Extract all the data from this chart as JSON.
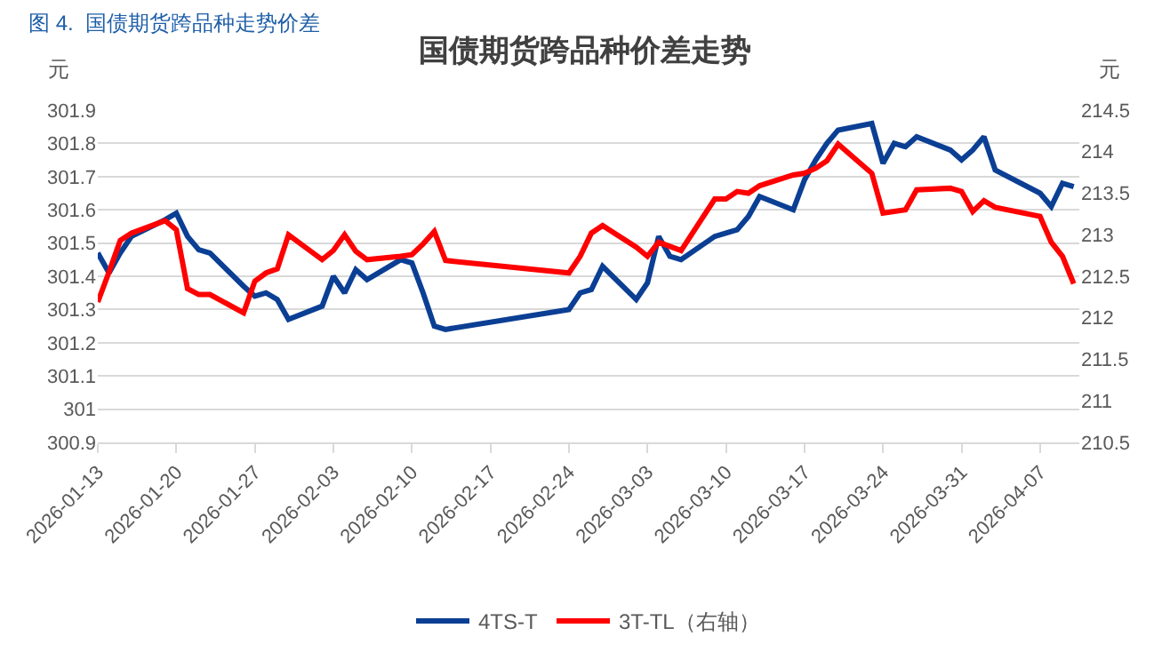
{
  "chart_data": {
    "type": "line",
    "title": "国债期货跨品种价差走势",
    "annotations": [
      "图 4.  国债期货跨品种走势价差"
    ],
    "ylabel": "元",
    "y2label": "元",
    "x": [
      "2026-01-13",
      "2026-01-14",
      "2026-01-15",
      "2026-01-16",
      "2026-01-19",
      "2026-01-20",
      "2026-01-21",
      "2026-01-22",
      "2026-01-23",
      "2026-01-26",
      "2026-01-27",
      "2026-01-28",
      "2026-01-29",
      "2026-01-30",
      "2026-02-02",
      "2026-02-03",
      "2026-02-04",
      "2026-02-05",
      "2026-02-06",
      "2026-02-09",
      "2026-02-10",
      "2026-02-11",
      "2026-02-12",
      "2026-02-13",
      "2026-02-24",
      "2026-02-25",
      "2026-02-26",
      "2026-02-27",
      "2026-03-02",
      "2026-03-03",
      "2026-03-04",
      "2026-03-05",
      "2026-03-06",
      "2026-03-09",
      "2026-03-10",
      "2026-03-11",
      "2026-03-12",
      "2026-03-13",
      "2026-03-16",
      "2026-03-17",
      "2026-03-18",
      "2026-03-19",
      "2026-03-20",
      "2026-03-23",
      "2026-03-24",
      "2026-03-25",
      "2026-03-26",
      "2026-03-27",
      "2026-03-30",
      "2026-03-31",
      "2026-04-01",
      "2026-04-02",
      "2026-04-03",
      "2026-04-07",
      "2026-04-08",
      "2026-04-09",
      "2026-04-10"
    ],
    "series": [
      {
        "name": "4TS-T",
        "color": "#0b3f94",
        "values": [
          301.47,
          301.41,
          301.47,
          301.52,
          301.57,
          301.59,
          301.52,
          301.48,
          301.47,
          301.37,
          301.34,
          301.35,
          301.33,
          301.27,
          301.31,
          301.4,
          301.35,
          301.42,
          301.39,
          301.45,
          301.44,
          301.35,
          301.25,
          301.24,
          301.3,
          301.35,
          301.36,
          301.43,
          301.33,
          301.38,
          301.52,
          301.46,
          301.45,
          301.52,
          301.53,
          301.54,
          301.58,
          301.64,
          301.6,
          301.69,
          301.75,
          301.8,
          301.84,
          301.86,
          301.74,
          301.8,
          301.79,
          301.82,
          301.78,
          301.75,
          301.78,
          301.82,
          301.72,
          301.65,
          301.61,
          301.68,
          301.67
        ]
      },
      {
        "name": "3T-TL（右轴）",
        "color": "#ff0000",
        "axis": "y2",
        "values": [
          212.19,
          212.55,
          212.93,
          213.02,
          213.17,
          213.06,
          212.35,
          212.28,
          212.28,
          212.06,
          212.44,
          212.54,
          212.59,
          213.0,
          212.7,
          212.81,
          213.0,
          212.8,
          212.7,
          212.74,
          212.76,
          212.89,
          213.04,
          212.69,
          212.54,
          212.74,
          213.02,
          213.11,
          212.85,
          212.74,
          212.91,
          212.86,
          212.81,
          213.43,
          213.43,
          213.52,
          213.5,
          213.59,
          213.72,
          213.74,
          213.8,
          213.89,
          214.09,
          213.74,
          213.26,
          213.28,
          213.3,
          213.54,
          213.56,
          213.52,
          213.28,
          213.41,
          213.33,
          213.22,
          212.91,
          212.74,
          212.41
        ]
      }
    ],
    "xlim": [
      "2026-01-13",
      "2026-04-10T12:00"
    ],
    "xticks": [
      {
        "value": "2026-01-13",
        "label": "2026-01-13"
      },
      {
        "value": "2026-01-20",
        "label": "2026-01-20"
      },
      {
        "value": "2026-01-27",
        "label": "2026-01-27"
      },
      {
        "value": "2026-02-03",
        "label": "2026-02-03"
      },
      {
        "value": "2026-02-10",
        "label": "2026-02-10"
      },
      {
        "value": "2026-02-17",
        "label": "2026-02-17"
      },
      {
        "value": "2026-02-24",
        "label": "2026-02-24"
      },
      {
        "value": "2026-03-03",
        "label": "2026-03-03"
      },
      {
        "value": "2026-03-10",
        "label": "2026-03-10"
      },
      {
        "value": "2026-03-17",
        "label": "2026-03-17"
      },
      {
        "value": "2026-03-24",
        "label": "2026-03-24"
      },
      {
        "value": "2026-03-31",
        "label": "2026-03-31"
      },
      {
        "value": "2026-04-07",
        "label": "2026-04-07"
      }
    ],
    "ylim": [
      300.9,
      301.9
    ],
    "yticks": [
      300.9,
      301,
      301.1,
      301.2,
      301.3,
      301.4,
      301.5,
      301.6,
      301.7,
      301.8,
      301.9
    ],
    "y2lim": [
      210.5,
      214.5
    ],
    "y2ticks": [
      210.5,
      211,
      211.5,
      212,
      212.5,
      213,
      213.5,
      214,
      214.5
    ],
    "grid": "y",
    "legend": "bottom",
    "marker": "none",
    "line_style": "solid"
  }
}
